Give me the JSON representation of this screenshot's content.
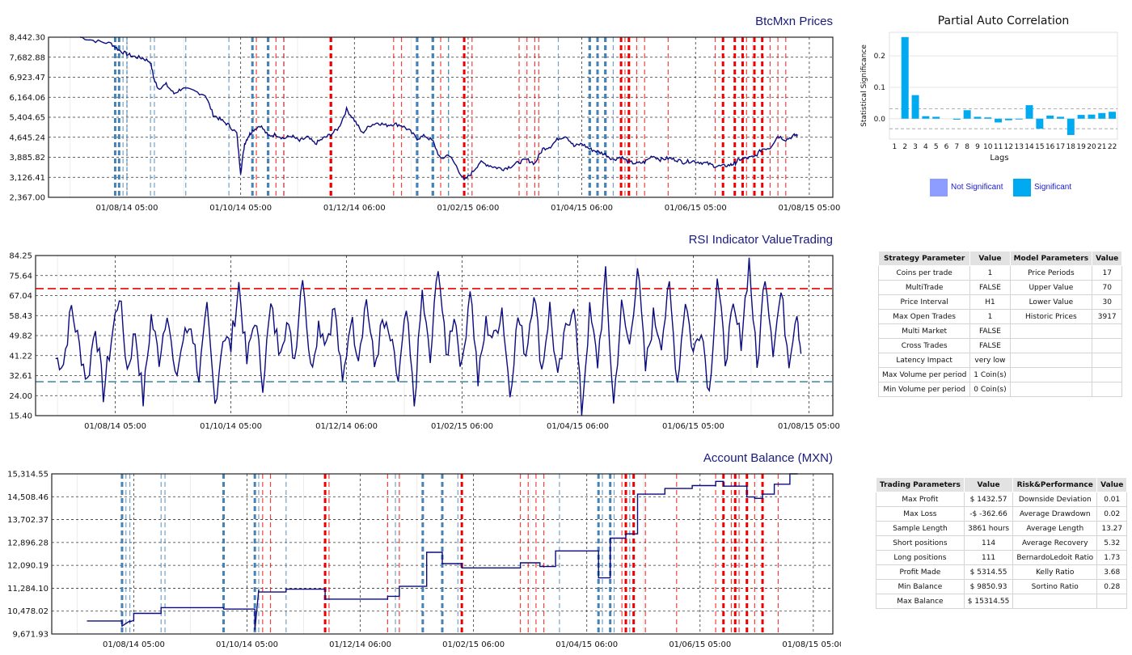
{
  "colors": {
    "price_line": "#0b0b80",
    "buy_marker": "#4682b4",
    "sell_marker": "#ee0000",
    "rsi_upper": "#ee0000",
    "rsi_lower": "#4a8fa8",
    "significant": "#00aaf0",
    "not_significant": "#8c9cff",
    "title_blue": "#1a1a80"
  },
  "chart_data": [
    {
      "id": "prices",
      "type": "line",
      "title": "BtcMxn Prices",
      "x_ticks": [
        "01/08/14 05:00",
        "01/10/14 05:00",
        "01/12/14 06:00",
        "01/02/15 06:00",
        "01/04/15 06:00",
        "01/06/15 05:00",
        "01/08/15 05:00"
      ],
      "x_tick_pos": [
        0.1,
        0.245,
        0.39,
        0.535,
        0.68,
        0.825,
        0.97
      ],
      "y_ticks": [
        "2,367.00",
        "3,126.41",
        "3,885.82",
        "4,645.24",
        "5,404.65",
        "6,164.06",
        "6,923.47",
        "7,682.88",
        "8,442.30"
      ],
      "ylim": [
        2367.0,
        8442.3
      ],
      "x_range": [
        0.04,
        0.955
      ],
      "series": [
        {
          "x": [
            0.04,
            0.06,
            0.08,
            0.09,
            0.1,
            0.11,
            0.12,
            0.13,
            0.135,
            0.14,
            0.15,
            0.16,
            0.17,
            0.185,
            0.2,
            0.21,
            0.22,
            0.23,
            0.24,
            0.245,
            0.25,
            0.255,
            0.26,
            0.27,
            0.28,
            0.29,
            0.3,
            0.31,
            0.32,
            0.33,
            0.34,
            0.35,
            0.36,
            0.37,
            0.38,
            0.39,
            0.4,
            0.41,
            0.42,
            0.43,
            0.44,
            0.45,
            0.46,
            0.47,
            0.48,
            0.49,
            0.5,
            0.51,
            0.52,
            0.53,
            0.54,
            0.55,
            0.56,
            0.57,
            0.58,
            0.59,
            0.6,
            0.61,
            0.62,
            0.63,
            0.64,
            0.65,
            0.66,
            0.67,
            0.68,
            0.69,
            0.7,
            0.71,
            0.72,
            0.73,
            0.74,
            0.75,
            0.76,
            0.77,
            0.78,
            0.79,
            0.8,
            0.81,
            0.82,
            0.83,
            0.84,
            0.85,
            0.86,
            0.87,
            0.875,
            0.88,
            0.89,
            0.9,
            0.91,
            0.92,
            0.93,
            0.94,
            0.95,
            0.955
          ],
          "y": [
            8450,
            8300,
            8200,
            7950,
            7800,
            7700,
            7650,
            7500,
            6800,
            6500,
            6650,
            6300,
            6500,
            6400,
            6250,
            5500,
            5300,
            5100,
            4800,
            3300,
            4400,
            4700,
            4900,
            5100,
            4700,
            4750,
            4600,
            4700,
            4500,
            4650,
            4400,
            4600,
            4750,
            5000,
            5700,
            5300,
            4800,
            5100,
            5200,
            5100,
            5150,
            5100,
            4900,
            4600,
            4700,
            4500,
            3800,
            4000,
            3550,
            3000,
            3300,
            3700,
            3600,
            3500,
            3450,
            3550,
            3700,
            3800,
            3650,
            4200,
            4300,
            4600,
            4700,
            4300,
            4400,
            4200,
            4100,
            4000,
            3800,
            3900,
            3700,
            3650,
            3700,
            3950,
            3800,
            3850,
            3800,
            3700,
            3750,
            3700,
            3650,
            3550,
            3550,
            3600,
            3650,
            3800,
            3850,
            3900,
            4200,
            4250,
            4700,
            4550,
            4700,
            4750
          ]
        }
      ],
      "buy_markers_x": [
        0.085,
        0.09,
        0.095,
        0.1,
        0.13,
        0.135,
        0.175,
        0.23,
        0.26,
        0.28,
        0.28,
        0.3,
        0.47,
        0.47,
        0.49,
        0.49,
        0.51,
        0.51,
        0.65,
        0.69,
        0.69,
        0.7,
        0.71,
        0.71,
        0.72
      ],
      "buy_heavy_x": [
        0.085,
        0.09,
        0.26,
        0.28,
        0.47,
        0.49,
        0.69,
        0.7,
        0.71
      ],
      "sell_markers_x": [
        0.265,
        0.29,
        0.3,
        0.36,
        0.36,
        0.44,
        0.45,
        0.5,
        0.53,
        0.54,
        0.6,
        0.61,
        0.62,
        0.625,
        0.73,
        0.735,
        0.74,
        0.75,
        0.76,
        0.79,
        0.85,
        0.86,
        0.875,
        0.885,
        0.89,
        0.9,
        0.91,
        0.92,
        0.93,
        0.94
      ],
      "sell_heavy_x": [
        0.36,
        0.53,
        0.73,
        0.74,
        0.86,
        0.875,
        0.885,
        0.9,
        0.91
      ]
    },
    {
      "id": "rsi",
      "type": "line",
      "title": "RSI  Indicator ValueTrading",
      "x_ticks": [
        "01/08/14 05:00",
        "01/10/14 05:00",
        "01/12/14 06:00",
        "01/02/15 06:00",
        "01/04/15 06:00",
        "01/06/15 05:00",
        "01/08/15 05:00"
      ],
      "x_tick_pos": [
        0.1,
        0.245,
        0.39,
        0.535,
        0.68,
        0.825,
        0.97
      ],
      "y_ticks": [
        "15.40",
        "24.00",
        "32.61",
        "41.22",
        "49.82",
        "58.43",
        "67.04",
        "75.64",
        "84.25"
      ],
      "ylim": [
        15.4,
        84.25
      ],
      "upper_line": 70,
      "lower_line": 30,
      "x_range": [
        0.025,
        0.96
      ],
      "series": [
        {
          "x": [
            0.025,
            0.035,
            0.045,
            0.055,
            0.065,
            0.075,
            0.085,
            0.095,
            0.105,
            0.115,
            0.125,
            0.135,
            0.145,
            0.155,
            0.165,
            0.175,
            0.185,
            0.195,
            0.205,
            0.215,
            0.225,
            0.235,
            0.245,
            0.255,
            0.265,
            0.275,
            0.285,
            0.295,
            0.305,
            0.315,
            0.325,
            0.335,
            0.345,
            0.355,
            0.365,
            0.375,
            0.385,
            0.395,
            0.405,
            0.415,
            0.425,
            0.435,
            0.445,
            0.455,
            0.465,
            0.475,
            0.485,
            0.495,
            0.505,
            0.515,
            0.525,
            0.535,
            0.545,
            0.555,
            0.565,
            0.575,
            0.585,
            0.595,
            0.605,
            0.615,
            0.625,
            0.635,
            0.645,
            0.655,
            0.665,
            0.675,
            0.685,
            0.695,
            0.705,
            0.715,
            0.725,
            0.735,
            0.745,
            0.755,
            0.765,
            0.775,
            0.785,
            0.795,
            0.805,
            0.815,
            0.825,
            0.835,
            0.845,
            0.855,
            0.865,
            0.875,
            0.885,
            0.895,
            0.905,
            0.915,
            0.925,
            0.935,
            0.945,
            0.955,
            0.96
          ],
          "y": [
            40,
            38,
            62,
            45,
            30,
            55,
            25,
            48,
            68,
            35,
            52,
            22,
            58,
            40,
            62,
            30,
            48,
            55,
            32,
            60,
            20,
            50,
            45,
            72,
            38,
            58,
            30,
            62,
            45,
            55,
            40,
            78,
            35,
            55,
            48,
            62,
            28,
            58,
            42,
            66,
            36,
            55,
            48,
            30,
            60,
            20,
            68,
            38,
            82,
            40,
            60,
            35,
            72,
            30,
            55,
            48,
            62,
            25,
            58,
            42,
            70,
            35,
            62,
            30,
            52,
            65,
            17,
            60,
            38,
            75,
            20,
            62,
            45,
            80,
            35,
            58,
            48,
            70,
            30,
            66,
            42,
            55,
            25,
            75,
            40,
            60,
            48,
            82,
            35,
            78,
            45,
            68,
            40,
            62,
            42
          ]
        }
      ]
    },
    {
      "id": "balance",
      "type": "line",
      "title": "Account Balance (MXN)",
      "x_ticks": [
        "01/08/14 05:00",
        "01/10/14 05:00",
        "01/12/14 06:00",
        "01/02/15 06:00",
        "01/04/15 06:00",
        "01/06/15 05:00",
        "01/08/15 05:00"
      ],
      "x_tick_pos": [
        0.105,
        0.25,
        0.395,
        0.54,
        0.685,
        0.83,
        0.975
      ],
      "y_ticks": [
        "9,671.93",
        "10,478.02",
        "11,284.10",
        "12,090.19",
        "12,896.28",
        "13,702.37",
        "14,508.46",
        "15,314.55"
      ],
      "ylim": [
        9671.93,
        15314.55
      ],
      "series": [
        {
          "x": [
            0.045,
            0.09,
            0.09,
            0.1,
            0.1,
            0.105,
            0.105,
            0.14,
            0.14,
            0.22,
            0.22,
            0.26,
            0.26,
            0.265,
            0.265,
            0.3,
            0.3,
            0.35,
            0.35,
            0.43,
            0.43,
            0.445,
            0.445,
            0.48,
            0.48,
            0.5,
            0.5,
            0.525,
            0.525,
            0.6,
            0.6,
            0.625,
            0.625,
            0.645,
            0.645,
            0.7,
            0.7,
            0.715,
            0.715,
            0.735,
            0.735,
            0.75,
            0.75,
            0.785,
            0.785,
            0.82,
            0.82,
            0.85,
            0.85,
            0.86,
            0.86,
            0.89,
            0.89,
            0.9,
            0.9,
            0.91,
            0.91,
            0.925,
            0.925,
            0.945,
            0.945,
            0.955
          ],
          "y": [
            10130,
            10130,
            9950,
            10130,
            10100,
            10150,
            10400,
            10400,
            10600,
            10600,
            10550,
            10550,
            9800,
            11230,
            11150,
            11150,
            11250,
            11250,
            10900,
            10900,
            11000,
            11000,
            11350,
            11350,
            12550,
            12550,
            12150,
            12150,
            12000,
            12000,
            12180,
            12180,
            12050,
            12050,
            12600,
            12600,
            11650,
            11650,
            13050,
            13050,
            13200,
            13200,
            14600,
            14600,
            14800,
            14800,
            14900,
            14900,
            15050,
            15050,
            14880,
            14880,
            14500,
            14500,
            14450,
            14450,
            14600,
            14600,
            14950,
            14950,
            15314,
            15314
          ]
        }
      ],
      "buy_markers_x": [
        0.09,
        0.095,
        0.1,
        0.14,
        0.145,
        0.22,
        0.26,
        0.265,
        0.3,
        0.44,
        0.475,
        0.5,
        0.52,
        0.65,
        0.7,
        0.705,
        0.715,
        0.72,
        0.74
      ],
      "buy_heavy_x": [
        0.09,
        0.22,
        0.26,
        0.475,
        0.5,
        0.7,
        0.715
      ],
      "sell_markers_x": [
        0.27,
        0.28,
        0.35,
        0.355,
        0.43,
        0.445,
        0.525,
        0.6,
        0.61,
        0.62,
        0.63,
        0.73,
        0.735,
        0.745,
        0.76,
        0.8,
        0.85,
        0.86,
        0.87,
        0.875,
        0.88,
        0.89,
        0.9,
        0.91,
        0.93
      ],
      "sell_heavy_x": [
        0.35,
        0.525,
        0.735,
        0.745,
        0.86,
        0.875,
        0.89,
        0.91
      ]
    },
    {
      "id": "pacf",
      "type": "bar",
      "title": "Partial Auto Correlation",
      "xlabel": "Lags",
      "ylabel": "Statistical Significance",
      "categories": [
        "1",
        "2",
        "3",
        "4",
        "5",
        "6",
        "7",
        "8",
        "9",
        "10",
        "11",
        "12",
        "13",
        "14",
        "15",
        "16",
        "17",
        "18",
        "19",
        "20",
        "21",
        "22"
      ],
      "values": [
        0.0,
        0.26,
        0.075,
        0.008,
        0.006,
        0.0,
        -0.003,
        0.027,
        0.006,
        0.004,
        -0.012,
        -0.005,
        -0.002,
        0.043,
        -0.032,
        0.01,
        0.006,
        -0.052,
        0.012,
        0.013,
        0.018,
        0.022
      ],
      "significant": [
        false,
        true,
        true,
        true,
        true,
        true,
        true,
        true,
        true,
        true,
        true,
        true,
        true,
        true,
        true,
        true,
        true,
        true,
        true,
        true,
        true,
        true
      ],
      "y_ticks": [
        "0.0",
        "0.1",
        "0.2"
      ],
      "ylim": [
        -0.065,
        0.275
      ],
      "conf_band": 0.032,
      "legend": [
        "Not Significant",
        "Significant"
      ]
    }
  ],
  "strategy_table": {
    "headers": [
      "Strategy Parameter",
      "Value",
      "Model Parameters",
      "Value"
    ],
    "rows": [
      [
        "Coins per trade",
        "1",
        "Price Periods",
        "17"
      ],
      [
        "MultiTrade",
        "FALSE",
        "Upper Value",
        "70"
      ],
      [
        "Price Interval",
        "H1",
        "Lower Value",
        "30"
      ],
      [
        "Max Open Trades",
        "1",
        "Historic Prices",
        "3917"
      ],
      [
        "Multi Market",
        "FALSE",
        "",
        ""
      ],
      [
        "Cross Trades",
        "FALSE",
        "",
        ""
      ],
      [
        "Latency Impact",
        "very low",
        "",
        ""
      ],
      [
        "Max Volume per period",
        "1 Coin(s)",
        "",
        ""
      ],
      [
        "Min Volume per period",
        "0 Coin(s)",
        "",
        ""
      ]
    ]
  },
  "trading_table": {
    "headers": [
      "Trading Parameters",
      "Value",
      "Risk&Performance",
      "Value"
    ],
    "rows": [
      [
        "Max Profit",
        "$ 1432.57",
        "Downside Deviation",
        "0.01"
      ],
      [
        "Max Loss",
        "-$ -362.66",
        "Average Drawdown",
        "0.02"
      ],
      [
        "Sample Length",
        "3861 hours",
        "Average Length",
        "13.27"
      ],
      [
        "Short positions",
        "114",
        "Average Recovery",
        "5.32"
      ],
      [
        "Long positions",
        "111",
        "BernardoLedoit Ratio",
        "1.73"
      ],
      [
        "Profit Made",
        "$ 5314.55",
        "Kelly Ratio",
        "3.68"
      ],
      [
        "Min Balance",
        "$ 9850.93",
        "Sortino Ratio",
        "0.28"
      ],
      [
        "Max Balance",
        "$ 15314.55",
        "",
        ""
      ]
    ]
  }
}
